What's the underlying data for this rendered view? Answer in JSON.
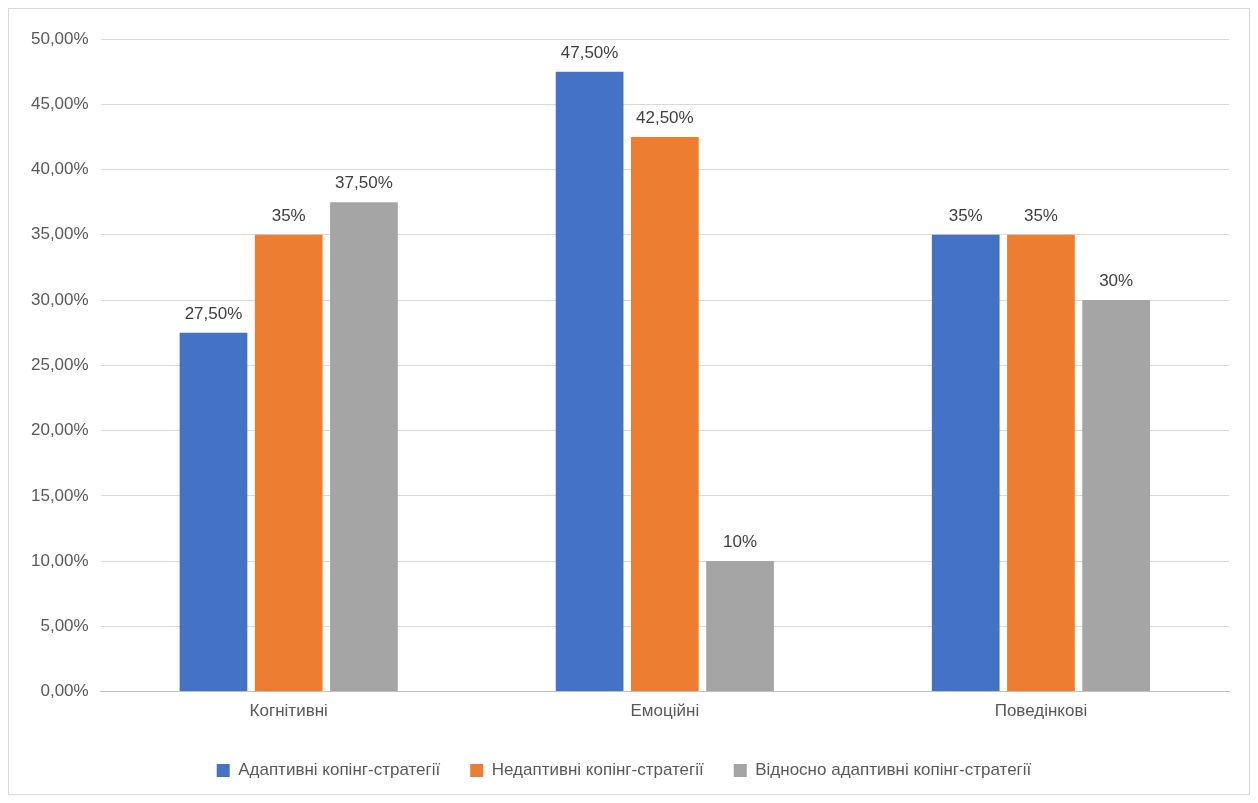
{
  "chart_data": {
    "type": "bar",
    "categories": [
      "Когнітивні",
      "Емоційні",
      "Поведінкові"
    ],
    "series": [
      {
        "name": "Адаптивні копінг-стратегії",
        "color": "#4472c4",
        "values": [
          27.5,
          47.5,
          35
        ],
        "value_labels": [
          "27,50%",
          "47,50%",
          "35%"
        ]
      },
      {
        "name": "Недаптивні копінг-стратегії",
        "color": "#ed7d31",
        "values": [
          35,
          42.5,
          35
        ],
        "value_labels": [
          "35%",
          "42,50%",
          "35%"
        ]
      },
      {
        "name": "Відносно адаптивні копінг-стратегії",
        "color": "#a5a5a5",
        "values": [
          37.5,
          10,
          30
        ],
        "value_labels": [
          "37,50%",
          "10%",
          "30%"
        ]
      }
    ],
    "ylim": [
      0,
      50
    ],
    "yticks": [
      {
        "value": 0,
        "label": "0,00%"
      },
      {
        "value": 5,
        "label": "5,00%"
      },
      {
        "value": 10,
        "label": "10,00%"
      },
      {
        "value": 15,
        "label": "15,00%"
      },
      {
        "value": 20,
        "label": "20,00%"
      },
      {
        "value": 25,
        "label": "25,00%"
      },
      {
        "value": 30,
        "label": "30,00%"
      },
      {
        "value": 35,
        "label": "35,00%"
      },
      {
        "value": 40,
        "label": "40,00%"
      },
      {
        "value": 45,
        "label": "45,00%"
      },
      {
        "value": 50,
        "label": "50,00%"
      }
    ],
    "grid": "y",
    "legend": "bottom"
  }
}
